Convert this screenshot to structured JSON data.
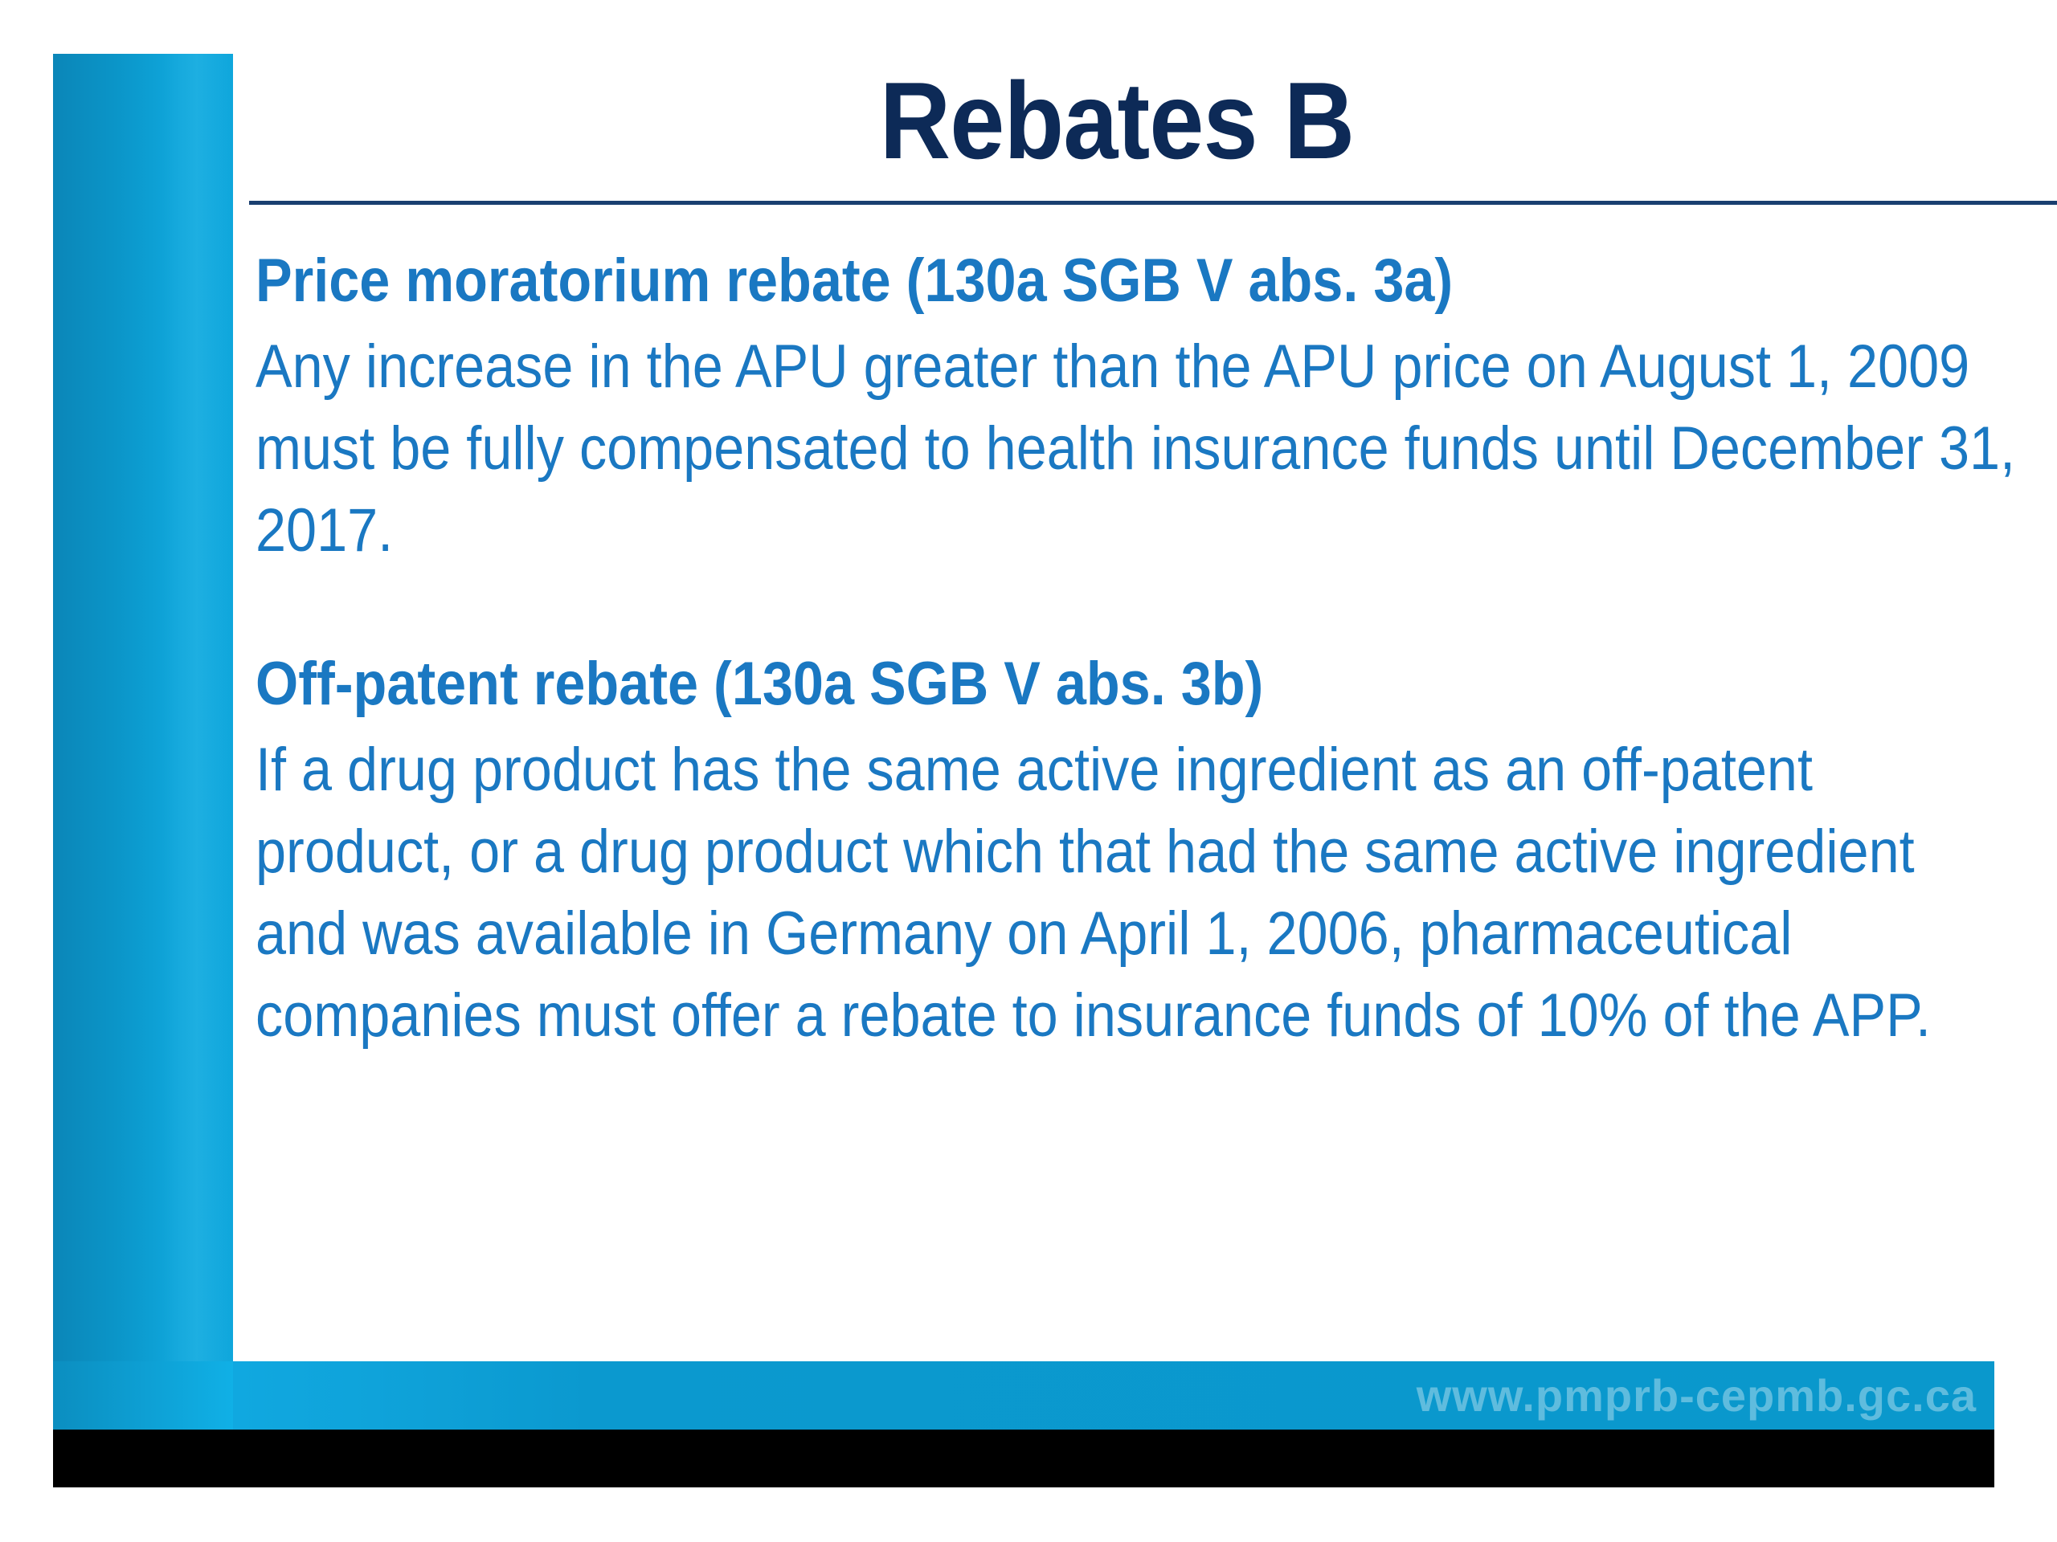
{
  "slide": {
    "title": "Rebates B",
    "sections": [
      {
        "heading": "Price moratorium rebate (130a SGB V abs. 3a)",
        "body": "Any increase in the APU greater than the APU price on August 1, 2009 must be fully compensated to health insurance funds until December 31, 2017."
      },
      {
        "heading": "Off-patent rebate (130a SGB V abs. 3b)",
        "body": "If a drug product has the same active ingredient as an off-patent product, or a drug product which that had the same active ingredient and was available in Germany on April 1, 2006, pharmaceutical companies must offer a rebate to insurance funds of 10% of the APP."
      }
    ],
    "footer": {
      "url": "www.pmprb-cepmb.gc.ca"
    },
    "colors": {
      "title": "#0d2a57",
      "text": "#1a78c2",
      "accent": "#10b0e6"
    }
  }
}
